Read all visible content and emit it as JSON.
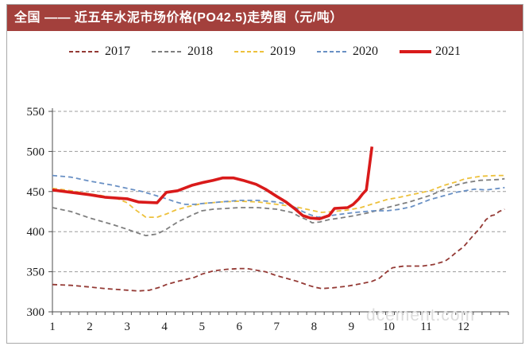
{
  "title": "全国 —— 近五年水泥市场价格(PO42.5)走势图（元/吨）",
  "watermark": "dcement.com",
  "colors": {
    "title_bar": "#a3403c",
    "title_text": "#ffffff",
    "grid": "#9c9c9c",
    "axis": "#4d4d4d",
    "watermark": "#dcdcdc"
  },
  "chart_data": {
    "type": "line",
    "title": "全国 —— 近五年水泥市场价格(PO42.5)走势图（元/吨）",
    "unit": "元/吨",
    "xlabel": "",
    "ylabel": "",
    "ylim": [
      300,
      550
    ],
    "y_ticks": [
      300,
      350,
      400,
      450,
      500,
      550
    ],
    "x_ticks": [
      1,
      2,
      3,
      4,
      5,
      6,
      7,
      8,
      9,
      10,
      11,
      12
    ],
    "grid": "dashed-horizontal",
    "legend_position": "top-center",
    "series": [
      {
        "name": "2017",
        "color": "#943a35",
        "style": "dashed",
        "width": 1.8,
        "points": [
          [
            1,
            334
          ],
          [
            1.5,
            333
          ],
          [
            2,
            331
          ],
          [
            2.4,
            329
          ],
          [
            3,
            327
          ],
          [
            3.3,
            326
          ],
          [
            3.6,
            327
          ],
          [
            3.9,
            331
          ],
          [
            4.05,
            334
          ],
          [
            4.35,
            338
          ],
          [
            4.8,
            343
          ],
          [
            5,
            347
          ],
          [
            5.3,
            351
          ],
          [
            5.65,
            353
          ],
          [
            6,
            354
          ],
          [
            6.2,
            354
          ],
          [
            6.45,
            352
          ],
          [
            6.7,
            350
          ],
          [
            7,
            345
          ],
          [
            7.25,
            342
          ],
          [
            7.55,
            338
          ],
          [
            7.85,
            333
          ],
          [
            8,
            331
          ],
          [
            8.2,
            329
          ],
          [
            8.5,
            330
          ],
          [
            8.9,
            332
          ],
          [
            9.25,
            335
          ],
          [
            9.55,
            338
          ],
          [
            9.75,
            342
          ],
          [
            9.95,
            350
          ],
          [
            10.1,
            355
          ],
          [
            10.4,
            357
          ],
          [
            10.9,
            357
          ],
          [
            11.2,
            359
          ],
          [
            11.5,
            363
          ],
          [
            11.65,
            368
          ],
          [
            11.8,
            374
          ],
          [
            12,
            381
          ],
          [
            12.2,
            392
          ],
          [
            12.45,
            405
          ],
          [
            12.6,
            415
          ],
          [
            12.75,
            420
          ],
          [
            12.85,
            421
          ],
          [
            12.95,
            425
          ],
          [
            13.1,
            428
          ]
        ]
      },
      {
        "name": "2018",
        "color": "#7f7f7f",
        "style": "dashed",
        "width": 1.8,
        "points": [
          [
            1,
            430
          ],
          [
            1.5,
            425
          ],
          [
            2,
            417
          ],
          [
            2.6,
            409
          ],
          [
            3,
            403
          ],
          [
            3.3,
            398
          ],
          [
            3.5,
            395
          ],
          [
            3.8,
            397
          ],
          [
            4.05,
            403
          ],
          [
            4.35,
            412
          ],
          [
            4.8,
            422
          ],
          [
            5,
            426
          ],
          [
            5.3,
            428
          ],
          [
            6,
            430
          ],
          [
            6.5,
            430
          ],
          [
            7,
            428
          ],
          [
            7.4,
            424
          ],
          [
            7.6,
            419
          ],
          [
            7.85,
            414
          ],
          [
            7.95,
            411
          ],
          [
            8.15,
            412
          ],
          [
            8.4,
            415
          ],
          [
            8.7,
            417
          ],
          [
            9.1,
            420
          ],
          [
            9.5,
            424
          ],
          [
            9.95,
            430
          ],
          [
            10.55,
            437
          ],
          [
            11.1,
            445
          ],
          [
            11.5,
            453
          ],
          [
            11.8,
            458
          ],
          [
            12.05,
            461
          ],
          [
            12.45,
            464
          ],
          [
            12.95,
            465
          ],
          [
            13.1,
            466
          ]
        ]
      },
      {
        "name": "2019",
        "color": "#edc13c",
        "style": "dashed",
        "width": 1.8,
        "points": [
          [
            1,
            454
          ],
          [
            1.5,
            451
          ],
          [
            2,
            447
          ],
          [
            2.3,
            445
          ],
          [
            2.75,
            441
          ],
          [
            3,
            436
          ],
          [
            3.2,
            428
          ],
          [
            3.5,
            418
          ],
          [
            3.8,
            418
          ],
          [
            4.05,
            422
          ],
          [
            4.3,
            427
          ],
          [
            4.6,
            431
          ],
          [
            4.8,
            433
          ],
          [
            5,
            435
          ],
          [
            5.5,
            437
          ],
          [
            6,
            438
          ],
          [
            6.5,
            437
          ],
          [
            7,
            434
          ],
          [
            7.5,
            431
          ],
          [
            7.9,
            427
          ],
          [
            8.2,
            424
          ],
          [
            8.5,
            425
          ],
          [
            8.9,
            427
          ],
          [
            9.25,
            430
          ],
          [
            9.6,
            435
          ],
          [
            9.95,
            440
          ],
          [
            10.3,
            443
          ],
          [
            10.6,
            446
          ],
          [
            11.1,
            451
          ],
          [
            11.5,
            458
          ],
          [
            11.8,
            462
          ],
          [
            12.05,
            466
          ],
          [
            12.45,
            469
          ],
          [
            12.9,
            470
          ],
          [
            13.1,
            470
          ]
        ]
      },
      {
        "name": "2020",
        "color": "#6990c4",
        "style": "dashed",
        "width": 1.8,
        "points": [
          [
            1,
            470
          ],
          [
            1.5,
            468
          ],
          [
            2,
            463
          ],
          [
            2.6,
            458
          ],
          [
            3,
            454
          ],
          [
            3.4,
            450
          ],
          [
            3.7,
            446
          ],
          [
            4.05,
            441
          ],
          [
            4.3,
            437
          ],
          [
            4.55,
            434
          ],
          [
            4.8,
            434
          ],
          [
            5,
            435
          ],
          [
            5.5,
            437
          ],
          [
            6,
            439
          ],
          [
            6.5,
            439
          ],
          [
            7,
            437
          ],
          [
            7.3,
            434
          ],
          [
            7.5,
            430
          ],
          [
            7.7,
            425
          ],
          [
            7.9,
            421
          ],
          [
            8.1,
            418
          ],
          [
            8.3,
            419
          ],
          [
            8.6,
            421
          ],
          [
            9.1,
            424
          ],
          [
            9.6,
            426
          ],
          [
            9.95,
            426
          ],
          [
            10.3,
            428
          ],
          [
            10.6,
            431
          ],
          [
            11.1,
            440
          ],
          [
            11.5,
            445
          ],
          [
            11.8,
            449
          ],
          [
            12.3,
            453
          ],
          [
            12.6,
            452
          ],
          [
            12.95,
            454
          ],
          [
            13.1,
            455
          ]
        ]
      },
      {
        "name": "2021",
        "color": "#d91a1a",
        "style": "solid",
        "width": 3.6,
        "points": [
          [
            1,
            452
          ],
          [
            1.5,
            449
          ],
          [
            2,
            446
          ],
          [
            2.4,
            443
          ],
          [
            3,
            441
          ],
          [
            3.3,
            437
          ],
          [
            3.8,
            436
          ],
          [
            4.05,
            449
          ],
          [
            4.35,
            451
          ],
          [
            4.75,
            458
          ],
          [
            5,
            461
          ],
          [
            5.3,
            464
          ],
          [
            5.55,
            467
          ],
          [
            5.85,
            467
          ],
          [
            6.1,
            464
          ],
          [
            6.45,
            459
          ],
          [
            6.7,
            453
          ],
          [
            7,
            444
          ],
          [
            7.25,
            437
          ],
          [
            7.5,
            428
          ],
          [
            7.7,
            420
          ],
          [
            7.9,
            417
          ],
          [
            8.15,
            416
          ],
          [
            8.4,
            420
          ],
          [
            8.55,
            429
          ],
          [
            8.9,
            430
          ],
          [
            9.05,
            434
          ],
          [
            9.2,
            441
          ],
          [
            9.3,
            447
          ],
          [
            9.4,
            452
          ],
          [
            9.55,
            506
          ]
        ]
      }
    ]
  }
}
